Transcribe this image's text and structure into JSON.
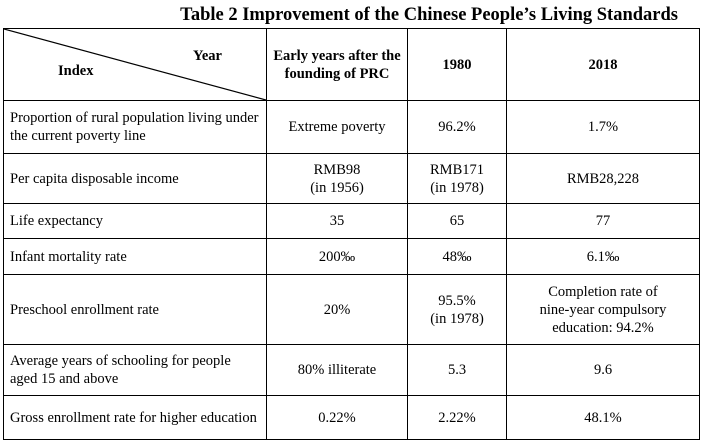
{
  "title": "Table 2 Improvement  of the Chinese People’s Living Standards",
  "header": {
    "year_label": "Year",
    "index_label": "Index",
    "columns": [
      "Early years after the founding of PRC",
      "1980",
      "2018"
    ]
  },
  "rows": [
    {
      "index": "Proportion of rural population living under the current poverty line",
      "early": "Extreme poverty",
      "y1980": "96.2%",
      "y2018": "1.7%"
    },
    {
      "index": "Per capita disposable income",
      "early": "RMB98\n(in 1956)",
      "y1980": "RMB171\n(in 1978)",
      "y2018": "RMB28,228"
    },
    {
      "index": "Life expectancy",
      "early": "35",
      "y1980": "65",
      "y2018": "77"
    },
    {
      "index": "Infant mortality rate",
      "early": "200‰",
      "y1980": "48‰",
      "y2018": "6.1‰"
    },
    {
      "index": "Preschool enrollment  rate",
      "early": "20%",
      "y1980": "95.5%\n(in 1978)",
      "y2018": "Completion rate of\nnine-year compulsory\neducation: 94.2%"
    },
    {
      "index": "Average years of schooling  for people aged 15 and above",
      "early": "80% illiterate",
      "y1980": "5.3",
      "y2018": "9.6"
    },
    {
      "index": "Gross enrollment rate for higher education",
      "early": "0.22%",
      "y1980": "2.22%",
      "y2018": "48.1%"
    }
  ]
}
